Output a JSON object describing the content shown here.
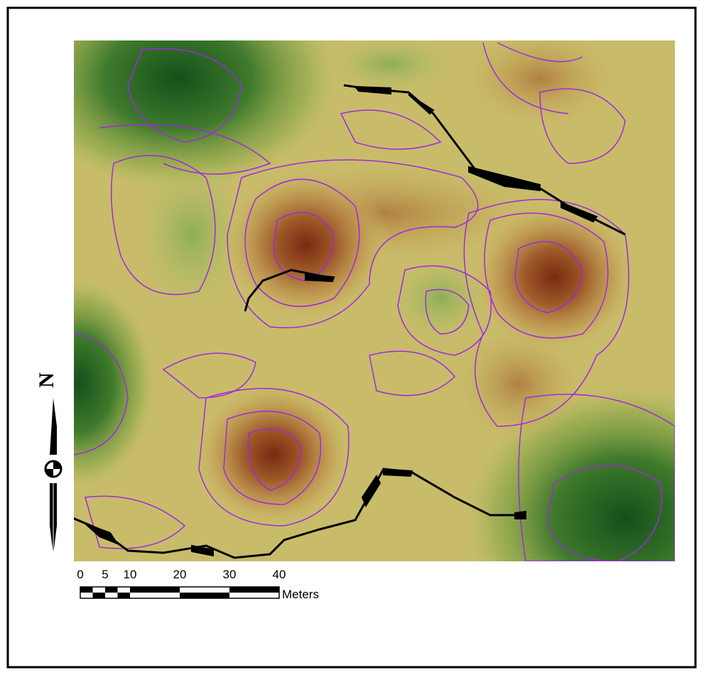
{
  "north_arrow": {
    "label": "N"
  },
  "scale_bar": {
    "ticks": [
      0,
      5,
      10,
      20,
      30,
      40
    ],
    "unit": "Meters"
  }
}
